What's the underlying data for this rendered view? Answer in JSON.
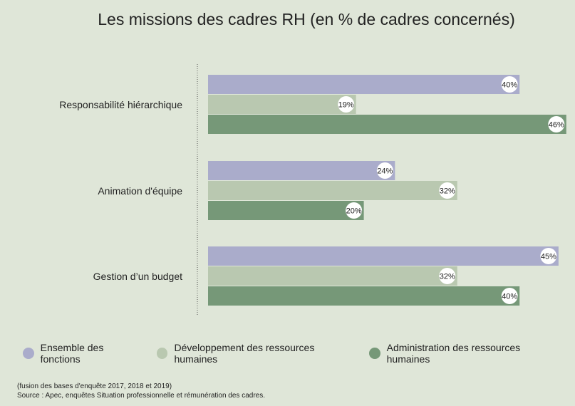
{
  "chart_data": {
    "type": "bar",
    "orientation": "horizontal",
    "title": "Les missions des cadres RH (en % de cadres concernés)",
    "categories": [
      "Responsabilité hiérarchique",
      "Animation d'équipe",
      "Gestion d’un budget"
    ],
    "series": [
      {
        "name": "Ensemble des fonctions",
        "color": "#aaaccb",
        "values": [
          40,
          24,
          45
        ],
        "labels": [
          "40%",
          "24%",
          "45%"
        ]
      },
      {
        "name": "Développement des ressources humaines",
        "color": "#b9c8b0",
        "values": [
          19,
          32,
          32
        ],
        "labels": [
          "19%",
          "32%",
          "32%"
        ]
      },
      {
        "name": "Administration des ressources humaines",
        "color": "#769878",
        "values": [
          46,
          20,
          40
        ],
        "labels": [
          "46%",
          "20%",
          "40%"
        ]
      }
    ],
    "xlim": [
      0,
      46
    ],
    "xlabel": "",
    "ylabel": "",
    "grid": false,
    "legend_position": "bottom"
  },
  "footnotes": {
    "line1": "(fusion des bases d'enquête 2017, 2018 et 2019)",
    "line2": "Source : Apec, enquêtes Situation professionnelle et rémunération des cadres."
  }
}
